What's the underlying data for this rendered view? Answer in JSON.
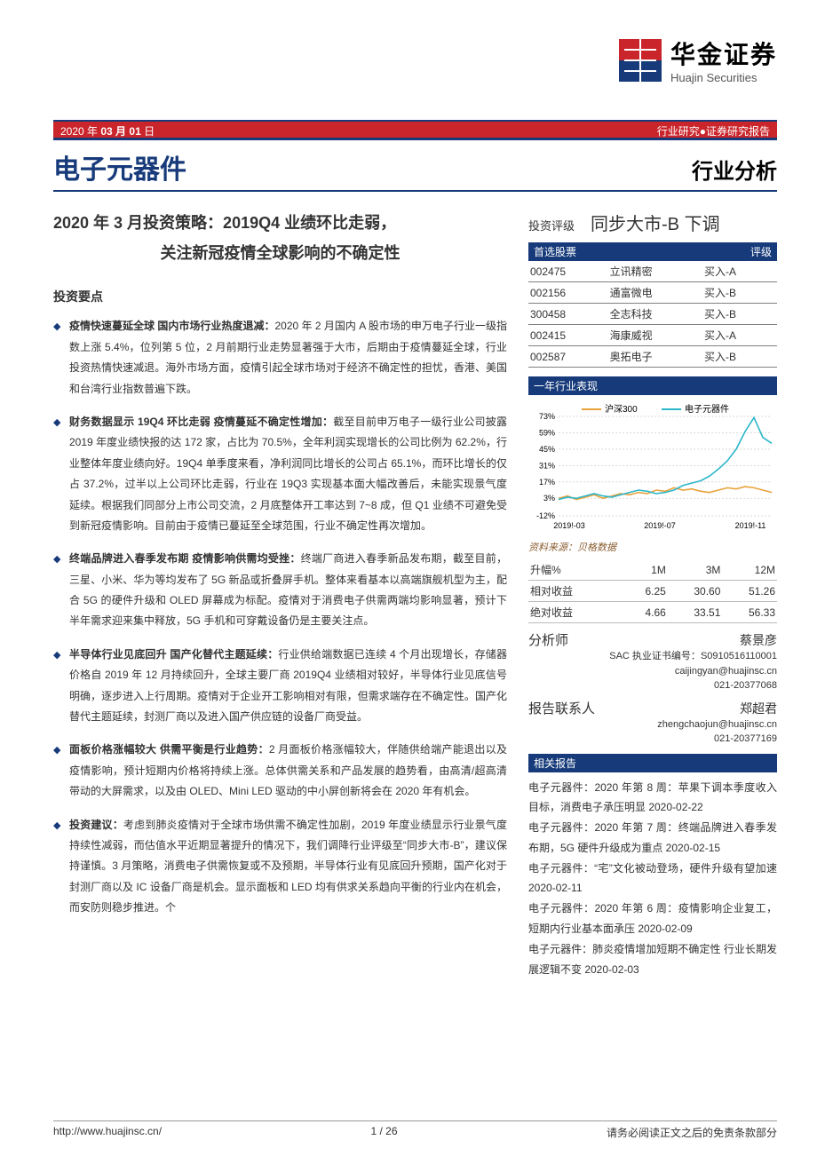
{
  "header": {
    "date_prefix": "2020 年 ",
    "date_mid": "03 月 01",
    "date_suffix": " 日",
    "right_tag": "行业研究●证券研究报告",
    "logo_cn": "华金证券",
    "logo_en": "Huajin Securities"
  },
  "sector": "电子元器件",
  "report_type": "行业分析",
  "title_line1": "2020 年 3 月投资策略：2019Q4 业绩环比走弱，",
  "title_line2": "关注新冠疫情全球影响的不确定性",
  "invest_points_heading": "投资要点",
  "bullets": [
    {
      "bold": "疫情快速蔓延全球 国内市场行业热度退减：",
      "text": "2020 年 2 月国内 A 股市场的申万电子行业一级指数上涨 5.4%，位列第 5 位，2 月前期行业走势显著强于大市，后期由于疫情蔓延全球，行业投资热情快速减退。海外市场方面，疫情引起全球市场对于经济不确定性的担忧，香港、美国和台湾行业指数普遍下跌。"
    },
    {
      "bold": "财务数据显示 19Q4 环比走弱 疫情蔓延不确定性增加：",
      "text": "截至目前申万电子一级行业公司披露 2019 年度业绩快报的达 172 家，占比为 70.5%，全年利润实现增长的公司比例为 62.2%，行业整体年度业绩向好。19Q4 单季度来看，净利润同比增长的公司占 65.1%，而环比增长的仅占 37.2%，过半以上公司环比走弱，行业在 19Q3 实现基本面大幅改善后，未能实现景气度延续。根据我们同部分上市公司交流，2 月底整体开工率达到 7~8 成，但 Q1 业绩不可避免受到新冠疫情影响。目前由于疫情已蔓延至全球范围，行业不确定性再次增加。"
    },
    {
      "bold": "终端品牌进入春季发布期 疫情影响供需均受挫：",
      "text": "终端厂商进入春季新品发布期，截至目前，三星、小米、华为等均发布了 5G 新品或折叠屏手机。整体来看基本以高端旗舰机型为主，配合 5G 的硬件升级和 OLED 屏幕成为标配。疫情对于消费电子供需两端均影响显著，预计下半年需求迎来集中释放，5G 手机和可穿戴设备仍是主要关注点。"
    },
    {
      "bold": "半导体行业见底回升 国产化替代主题延续：",
      "text": "行业供给端数据已连续 4 个月出现增长，存储器价格自 2019 年 12 月持续回升，全球主要厂商 2019Q4 业绩相对较好，半导体行业见底信号明确，逐步进入上行周期。疫情对于企业开工影响相对有限，但需求端存在不确定性。国产化替代主题延续，封测厂商以及进入国产供应链的设备厂商受益。"
    },
    {
      "bold": "面板价格涨幅较大 供需平衡是行业趋势：",
      "text": "2 月面板价格涨幅较大，伴随供给端产能退出以及疫情影响，预计短期内价格将持续上涨。总体供需关系和产品发展的趋势看，由高清/超高清带动的大屏需求，以及由 OLED、Mini LED 驱动的中小屏创新将会在 2020 年有机会。"
    },
    {
      "bold": "投资建议：",
      "text": "考虑到肺炎疫情对于全球市场供需不确定性加剧，2019 年度业绩显示行业景气度持续性减弱，而估值水平近期显著提升的情况下，我们调降行业评级至“同步大市-B”，建议保持谨慎。3 月策略，消费电子供需恢复或不及预期，半导体行业有见底回升预期，国产化对于封测厂商以及 IC 设备厂商是机会。显示面板和 LED 均有供求关系趋向平衡的行业内在机会，而安防则稳步推进。个"
    }
  ],
  "rating": {
    "label": "投资评级",
    "value": "同步大市-B 下调"
  },
  "stocks_header": {
    "left": "首选股票",
    "right": "评级"
  },
  "stocks": [
    {
      "code": "002475",
      "name": "立讯精密",
      "rating": "买入-A"
    },
    {
      "code": "002156",
      "name": "通富微电",
      "rating": "买入-B"
    },
    {
      "code": "300458",
      "name": "全志科技",
      "rating": "买入-B"
    },
    {
      "code": "002415",
      "name": "海康威视",
      "rating": "买入-A"
    },
    {
      "code": "002587",
      "name": "奥拓电子",
      "rating": "买入-B"
    }
  ],
  "perf_header": "一年行业表现",
  "chart": {
    "legend": [
      {
        "label": "沪深300",
        "color": "#e8a23a"
      },
      {
        "label": "电子元器件",
        "color": "#2bb6c9"
      }
    ],
    "y_ticks": [
      "73%",
      "59%",
      "45%",
      "31%",
      "17%",
      "3%",
      "-12%"
    ],
    "x_ticks": [
      "2019!-03",
      "2019!-07",
      "2019!-11"
    ],
    "series_hs300": [
      3,
      5,
      2,
      4,
      6,
      3,
      5,
      7,
      6,
      8,
      7,
      10,
      9,
      12,
      10,
      11,
      9,
      8,
      10,
      12,
      11,
      13,
      12,
      10,
      8
    ],
    "series_elec": [
      2,
      4,
      3,
      5,
      7,
      5,
      4,
      6,
      8,
      10,
      9,
      7,
      8,
      10,
      14,
      16,
      18,
      22,
      28,
      35,
      45,
      60,
      72,
      55,
      50
    ],
    "ymin": -12,
    "ymax": 73,
    "bg": "#ffffff",
    "grid": "#d9d9d9"
  },
  "source_note": "资料来源：贝格数据",
  "returns": {
    "header": [
      "升幅%",
      "1M",
      "3M",
      "12M"
    ],
    "rows": [
      {
        "label": "相对收益",
        "vals": [
          "6.25",
          "30.60",
          "51.26"
        ]
      },
      {
        "label": "绝对收益",
        "vals": [
          "4.66",
          "33.51",
          "56.33"
        ]
      }
    ]
  },
  "analyst": {
    "role": "分析师",
    "name": "蔡景彦",
    "sac_label": "SAC 执业证书编号：",
    "sac": "S0910516110001",
    "email": "caijingyan@huajinsc.cn",
    "phone": "021-20377068"
  },
  "contact": {
    "role": "报告联系人",
    "name": "郑超君",
    "email": "zhengchaojun@huajinsc.cn",
    "phone": "021-20377169"
  },
  "related_header": "相关报告",
  "related": [
    "电子元器件：2020 年第 8 周：苹果下调本季度收入目标，消费电子承压明显 2020-02-22",
    "电子元器件：2020 年第 7 周：终端品牌进入春季发布期，5G 硬件升级成为重点 2020-02-15",
    "电子元器件：“宅”文化被动登场，硬件升级有望加速 2020-02-11",
    "电子元器件：2020 年第 6 周：疫情影响企业复工，短期内行业基本面承压 2020-02-09",
    "电子元器件：肺炎疫情增加短期不确定性 行业长期发展逻辑不变 2020-02-03"
  ],
  "footer": {
    "url": "http://www.huajinsc.cn/",
    "page": "1 / 26",
    "disclaimer": "请务必阅读正文之后的免责条款部分"
  }
}
